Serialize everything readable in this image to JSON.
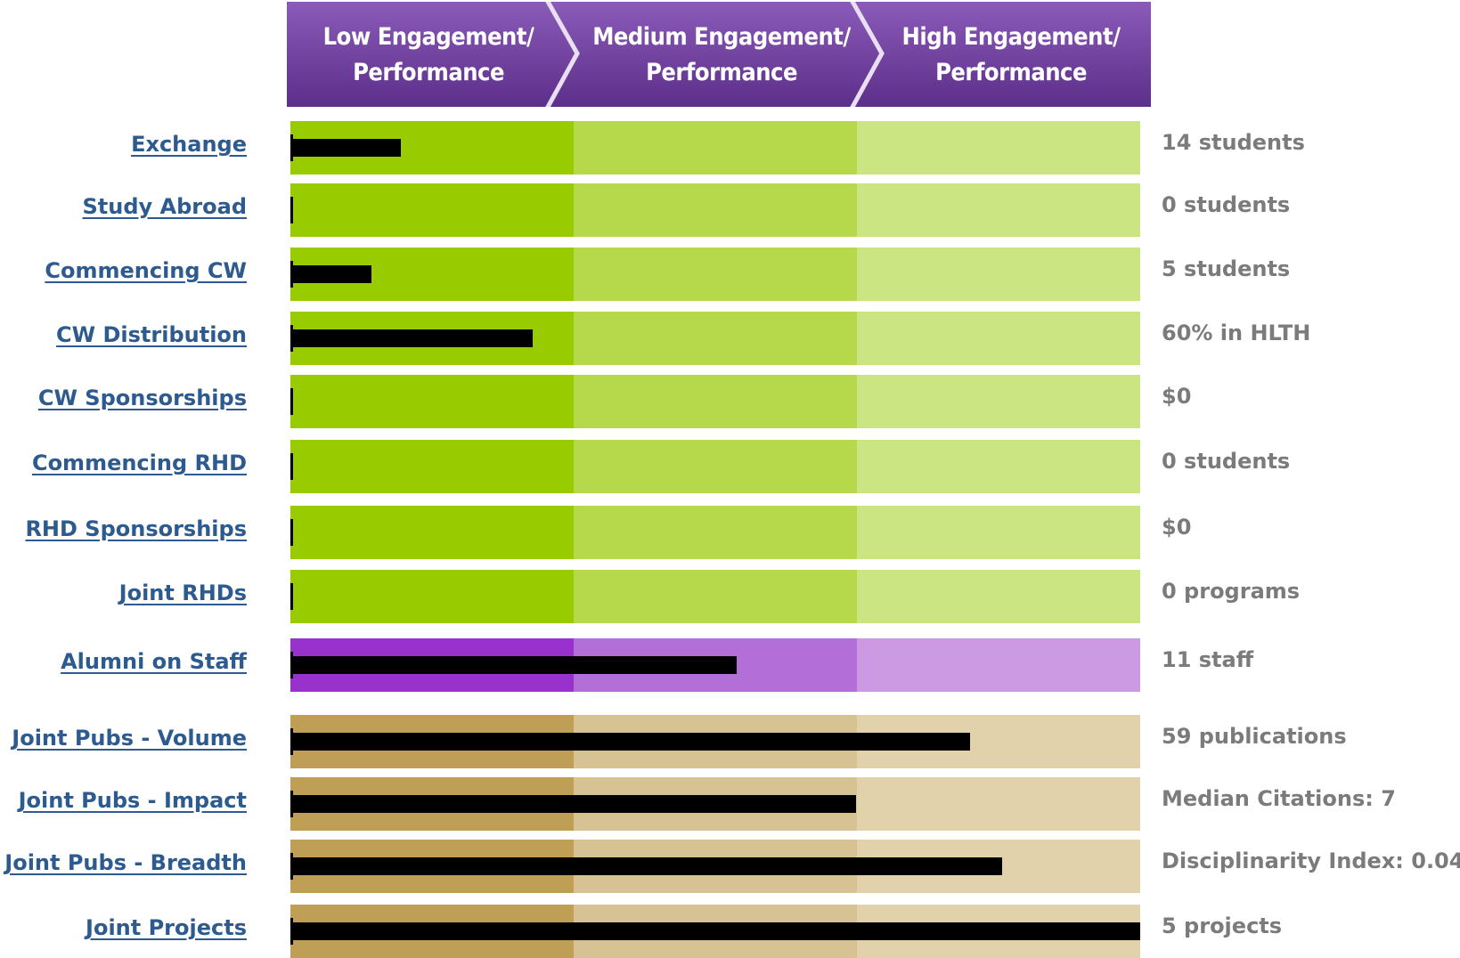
{
  "header": {
    "columns": [
      {
        "line1": "Low Engagement/",
        "line2": "Performance"
      },
      {
        "line1": "Medium Engagement/",
        "line2": "Performance"
      },
      {
        "line1": "High Engagement/",
        "line2": "Performance"
      }
    ],
    "color_top": "#8a5bb8",
    "color_bottom": "#5c2f8a",
    "chevron_color": "#e9dff2"
  },
  "colors": {
    "link": "#2d5a8f",
    "value_text": "#7b7b7b",
    "bar": "#000000",
    "green": [
      "#99cc00",
      "#b5d94a",
      "#cce583"
    ],
    "purple": [
      "#9932cc",
      "#b46ed8",
      "#cc9ae3"
    ],
    "tan": [
      "#bf9f55",
      "#d6c293",
      "#e1d2ab"
    ]
  },
  "chart_data": {
    "type": "bar",
    "orientation": "horizontal",
    "scale": "fraction of full band width (0 to 1)",
    "bands": [
      "Low Engagement/Performance",
      "Medium Engagement/Performance",
      "High Engagement/Performance"
    ],
    "rows": [
      {
        "label": "Exchange",
        "value_text": "14 students",
        "level": 0.13,
        "palette": "green"
      },
      {
        "label": "Study Abroad",
        "value_text": "0 students",
        "level": 0.0,
        "palette": "green"
      },
      {
        "label": "Commencing CW",
        "value_text": "5 students",
        "level": 0.095,
        "palette": "green"
      },
      {
        "label": "CW Distribution",
        "value_text": "60% in HLTH",
        "level": 0.285,
        "palette": "green"
      },
      {
        "label": "CW Sponsorships",
        "value_text": "$0",
        "level": 0.0,
        "palette": "green"
      },
      {
        "label": "Commencing RHD",
        "value_text": "0 students",
        "level": 0.0,
        "palette": "green"
      },
      {
        "label": "RHD Sponsorships",
        "value_text": "$0",
        "level": 0.0,
        "palette": "green"
      },
      {
        "label": "Joint RHDs",
        "value_text": "0 programs",
        "level": 0.0,
        "palette": "green"
      },
      {
        "label": "Alumni on Staff",
        "value_text": "11 staff",
        "level": 0.525,
        "palette": "purple"
      },
      {
        "label": "Joint Pubs - Volume",
        "value_text": "59 publications",
        "level": 0.8,
        "palette": "tan"
      },
      {
        "label": "Joint Pubs - Impact",
        "value_text": "Median Citations: 7",
        "level": 0.666,
        "palette": "tan"
      },
      {
        "label": "Joint Pubs - Breadth",
        "value_text": "Disciplinarity Index: 0.04",
        "level": 0.838,
        "palette": "tan"
      },
      {
        "label": "Joint Projects",
        "value_text": "5 projects",
        "level": 1.0,
        "palette": "tan"
      }
    ]
  }
}
